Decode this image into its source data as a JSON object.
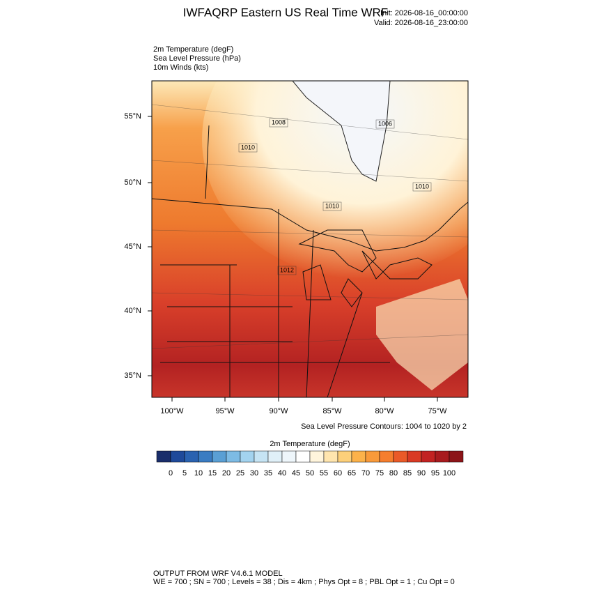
{
  "header": {
    "title": "IWFAQRP Eastern US Real Time WRF",
    "init": "Init: 2026-08-16_00:00:00",
    "valid": "Valid: 2026-08-16_23:00:00"
  },
  "fields": [
    "2m Temperature   (degF)",
    "Sea Level Pressure   (hPa)",
    "10m Winds   (kts)"
  ],
  "map": {
    "lat_labels": [
      "55°N",
      "50°N",
      "45°N",
      "40°N",
      "35°N"
    ],
    "lon_labels": [
      "100°W",
      "95°W",
      "90°W",
      "85°W",
      "80°W",
      "75°W"
    ],
    "contour_labels": [
      "1008",
      "1010",
      "1006",
      "1010",
      "1010",
      "1012"
    ],
    "contour_note": "Sea Level Pressure Contours: 1004 to 1020 by 2"
  },
  "colorbar": {
    "title": "2m Temperature  (degF)",
    "ticks": [
      0,
      5,
      10,
      15,
      20,
      25,
      30,
      35,
      40,
      45,
      50,
      55,
      60,
      65,
      70,
      75,
      80,
      85,
      90,
      95,
      100
    ],
    "colors": [
      "#1a2e6b",
      "#1f4a9a",
      "#2a62b0",
      "#3a7cc2",
      "#5a9fd4",
      "#7dbbe4",
      "#a3d3ef",
      "#c6e4f4",
      "#e0f0f8",
      "#eef6fb",
      "#ffffff",
      "#fff5dc",
      "#ffe5ae",
      "#fdd07a",
      "#fcb24a",
      "#f99a3a",
      "#f57e2e",
      "#ea5a28",
      "#d93a24",
      "#c22222",
      "#a81a1e",
      "#8c1418"
    ]
  },
  "footer": {
    "line1": "OUTPUT FROM WRF V4.6.1 MODEL",
    "line2": "WE = 700 ; SN = 700 ; Levels = 38 ; Dis = 4km ; Phys Opt = 8 ; PBL Opt = 1 ; Cu Opt = 0"
  }
}
